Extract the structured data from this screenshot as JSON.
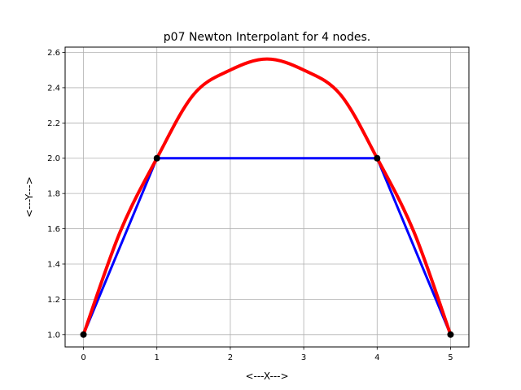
{
  "chart_data": {
    "type": "line",
    "title": "p07 Newton Interpolant for 4 nodes.",
    "xlabel": "<---X--->",
    "ylabel": "<---Y--->",
    "xlim": [
      -0.25,
      5.25
    ],
    "ylim": [
      0.93,
      2.63
    ],
    "x_ticks": [
      "0",
      "1",
      "2",
      "3",
      "4",
      "5"
    ],
    "y_ticks": [
      "1.0",
      "1.2",
      "1.4",
      "1.6",
      "1.8",
      "2.0",
      "2.2",
      "2.4",
      "2.6"
    ],
    "grid": true,
    "series": [
      {
        "kind": "line",
        "color": "#0000ff",
        "x": [
          0,
          1,
          4,
          5
        ],
        "y": [
          1.0,
          2.0,
          2.0,
          1.0
        ]
      },
      {
        "kind": "curve",
        "color": "#ff0000",
        "x": [
          0,
          0.5,
          1,
          1.5,
          2,
          2.5,
          3,
          3.5,
          4,
          4.5,
          5
        ],
        "y": [
          1.0,
          1.5833,
          2.0,
          2.3611,
          2.5,
          2.5625,
          2.5,
          2.3611,
          2.0,
          1.5833,
          1.0
        ]
      },
      {
        "kind": "points",
        "color": "#000000",
        "x": [
          0,
          1,
          4,
          5
        ],
        "y": [
          1.0,
          2.0,
          2.0,
          1.0
        ]
      }
    ]
  }
}
